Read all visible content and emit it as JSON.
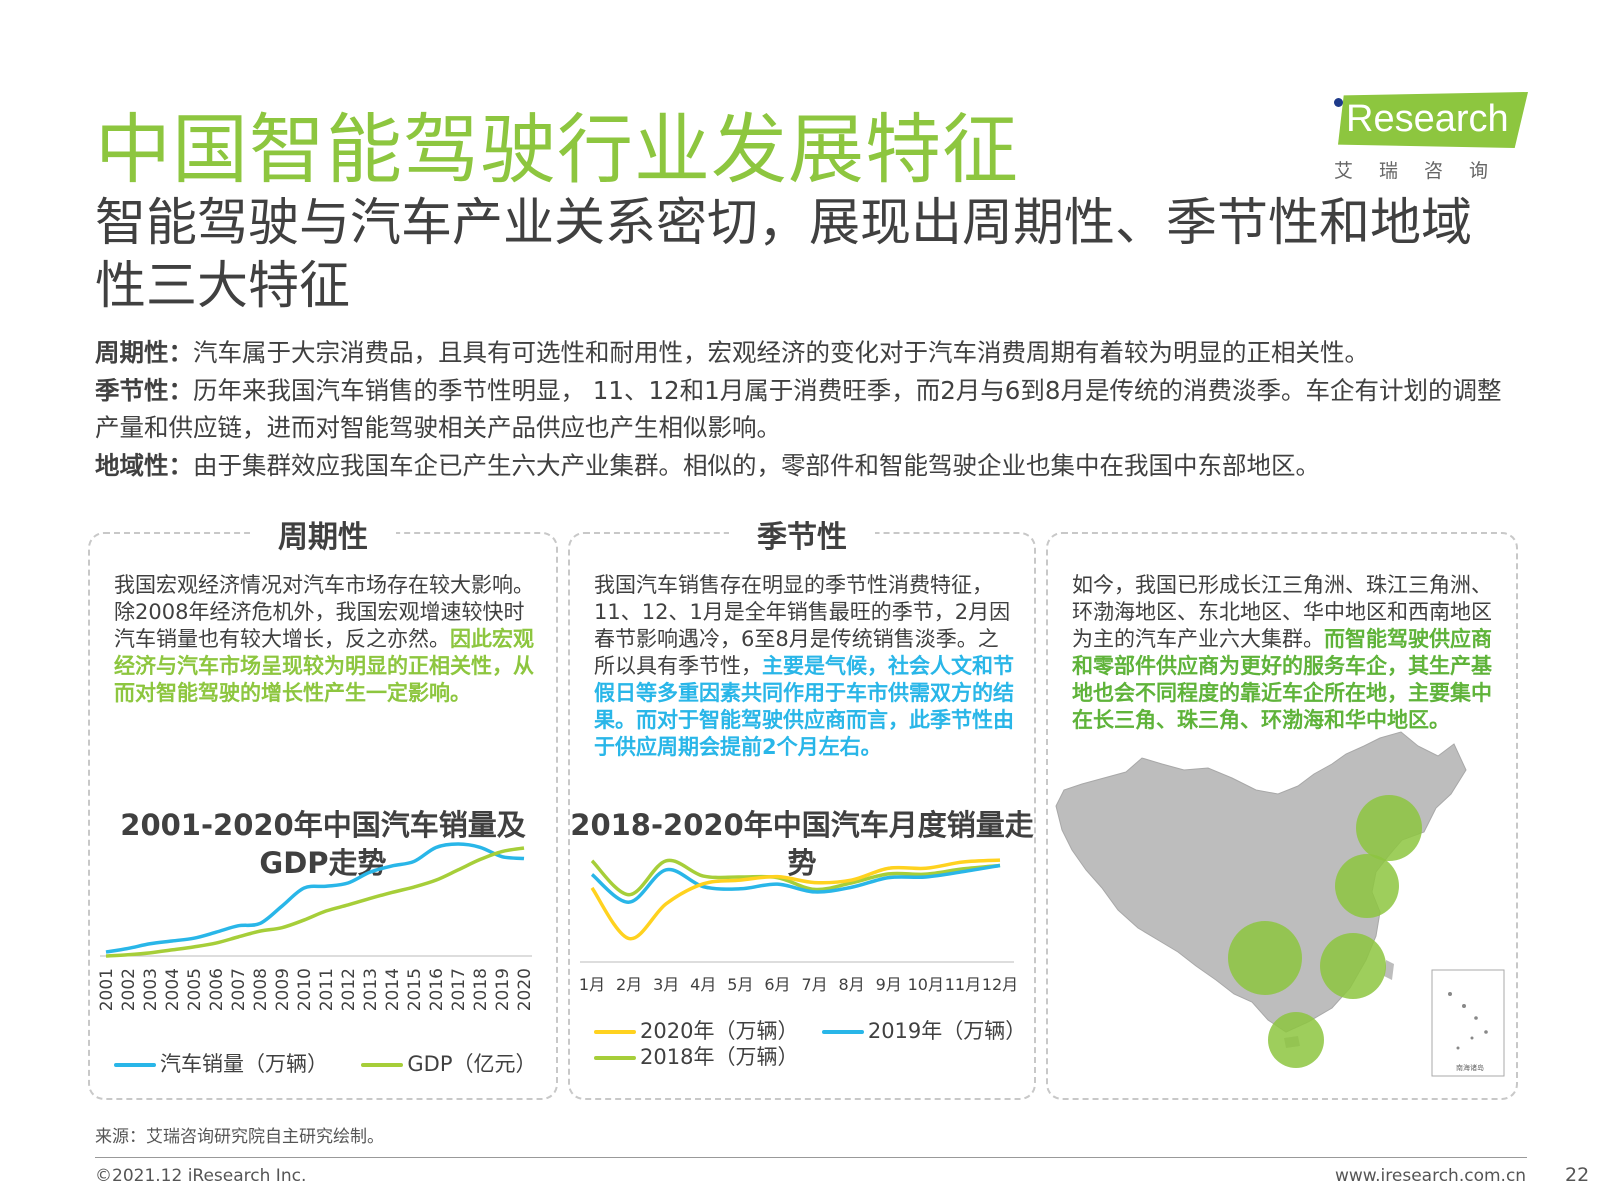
{
  "header": {
    "title": "中国智能驾驶行业发展特征",
    "logo_text": "Research",
    "logo_cn": "艾瑞咨询"
  },
  "subtitle": "智能驾驶与汽车产业关系密切，展现出周期性、季节性和地域性三大特征",
  "intro": [
    {
      "label": "周期性：",
      "text": "汽车属于大宗消费品，且具有可选性和耐用性，宏观经济的变化对于汽车消费周期有着较为明显的正相关性。"
    },
    {
      "label": "季节性：",
      "text": "历年来我国汽车销售的季节性明显， 11、12和1月属于消费旺季，而2月与6到8月是传统的消费淡季。车企有计划的调整产量和供应链，进而对智能驾驶相关产品供应也产生相似影响。"
    },
    {
      "label": "地域性：",
      "text": "由于集群效应我国车企已产生六大产业集群。相似的，零部件和智能驾驶企业也集中在我国中东部地区。"
    }
  ],
  "panel1": {
    "title": "周期性",
    "text_normal": "我国宏观经济情况对汽车市场存在较大影响。除2008年经济危机外，我国宏观增速较快时汽车销量也有较大增长，反之亦然。",
    "text_highlight": "因此宏观经济与汽车市场呈现较为明显的正相关性，从而对智能驾驶的增长性产生一定影响。",
    "chart_title": "2001-2020年中国汽车销量及GDP走势",
    "legend": [
      "汽车销量（万辆）",
      "GDP（亿元）"
    ]
  },
  "panel2": {
    "title": "季节性",
    "text_normal": "我国汽车销售存在明显的季节性消费特征，11、12、1月是全年销售最旺的季节，2月因春节影响遇冷，6至8月是传统销售淡季。之所以具有季节性，",
    "text_highlight": "主要是气候，社会人文和节假日等多重因素共同作用于车市供需双方的结果。而对于智能驾驶供应商而言，此季节性由于供应周期会提前2个月左右。",
    "chart_title": "2018-2020年中国汽车月度销量走势",
    "legend": [
      "2020年（万辆）",
      "2019年（万辆）",
      "2018年（万辆）"
    ]
  },
  "panel3": {
    "text_normal": "如今，我国已形成长江三角洲、珠江三角洲、环渤海地区、东北地区、华中地区和西南地区为主的汽车产业六大集群。",
    "text_highlight": "而智能驾驶供应商和零部件供应商为更好的服务车企，其生产基地也会不同程度的靠近车企所在地，主要集中在长三角、珠三角、环渤海和华中地区。",
    "map_inset_label": "南海诸岛"
  },
  "colors": {
    "green": "#8dc63f",
    "blue": "#29b6e8",
    "yellow": "#ffd21f",
    "lightgreen": "#a6ce39",
    "map_gray": "#bdbdbd"
  },
  "chart_data": [
    {
      "type": "line",
      "x": [
        "2001",
        "2002",
        "2003",
        "2004",
        "2005",
        "2006",
        "2007",
        "2008",
        "2009",
        "2010",
        "2011",
        "2012",
        "2013",
        "2014",
        "2015",
        "2016",
        "2017",
        "2018",
        "2019",
        "2020"
      ],
      "series": [
        {
          "name": "汽车销量（万辆）",
          "values": [
            237,
            325,
            439,
            507,
            576,
            722,
            879,
            938,
            1364,
            1806,
            1851,
            1931,
            2198,
            2349,
            2460,
            2803,
            2888,
            2808,
            2577,
            2531
          ]
        },
        {
          "name": "GDP（亿元）",
          "values": [
            110863,
            121717,
            137422,
            161840,
            187319,
            219439,
            270092,
            319245,
            348518,
            412119,
            487940,
            538580,
            592963,
            643563,
            688858,
            746395,
            832036,
            919281,
            986515,
            1015986
          ]
        }
      ]
    },
    {
      "type": "line",
      "x": [
        "1月",
        "2月",
        "3月",
        "4月",
        "5月",
        "6月",
        "7月",
        "8月",
        "9月",
        "10月",
        "11月",
        "12月"
      ],
      "series": [
        {
          "name": "2020年（万辆）",
          "values": [
            194,
            31,
            143,
            207,
            219,
            230,
            211,
            219,
            257,
            257,
            277,
            283
          ]
        },
        {
          "name": "2019年（万辆）",
          "values": [
            237,
            148,
            252,
            198,
            191,
            206,
            181,
            196,
            227,
            229,
            246,
            266
          ]
        },
        {
          "name": "2018年（万辆）",
          "values": [
            281,
            172,
            281,
            232,
            229,
            227,
            189,
            210,
            239,
            238,
            255,
            266
          ]
        }
      ]
    }
  ],
  "footer": {
    "source": "来源：艾瑞咨询研究院自主研究绘制。",
    "copyright": "©2021.12 iResearch Inc.",
    "site": "www.iresearch.com.cn",
    "page": "22"
  }
}
